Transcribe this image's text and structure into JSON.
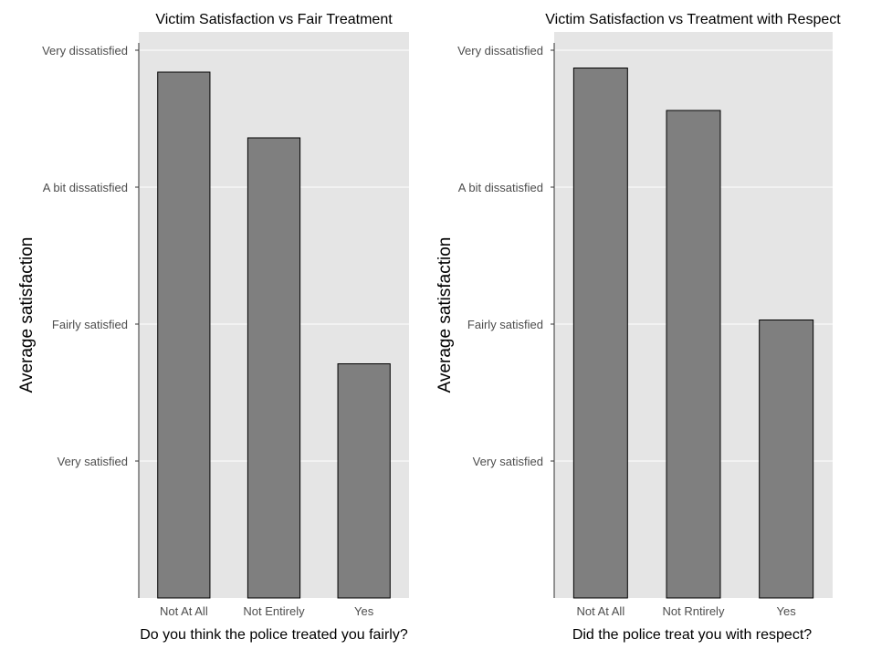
{
  "chart_data": [
    {
      "type": "bar",
      "title": "Victim Satisfaction vs Fair Treatment",
      "xlabel": "Do you think the police treated you fairly?",
      "ylabel": "Average satisfaction",
      "categories": [
        "Not At All",
        "Not Entirely",
        "Yes"
      ],
      "values": [
        3.84,
        3.36,
        1.71
      ],
      "ylim": [
        0,
        4
      ],
      "yticks": [
        {
          "value": 1,
          "label": "Very satisfied"
        },
        {
          "value": 2,
          "label": "Fairly satisfied"
        },
        {
          "value": 3,
          "label": "A bit dissatisfied"
        },
        {
          "value": 4,
          "label": "Very dissatisfied"
        }
      ],
      "grid": true,
      "colors": {
        "bar_fill": "#7f7f7f",
        "bar_stroke": "#000000",
        "panel": "#e5e5e5",
        "grid": "#ffffff"
      }
    },
    {
      "type": "bar",
      "title": "Victim Satisfaction vs Treatment with Respect",
      "xlabel": "Did the police treat you with respect?",
      "ylabel": "Average satisfaction",
      "categories": [
        "Not At All",
        "Not Rntirely",
        "Yes"
      ],
      "values": [
        3.87,
        3.56,
        2.03
      ],
      "ylim": [
        0,
        4
      ],
      "yticks": [
        {
          "value": 1,
          "label": "Very satisfied"
        },
        {
          "value": 2,
          "label": "Fairly satisfied"
        },
        {
          "value": 3,
          "label": "A bit dissatisfied"
        },
        {
          "value": 4,
          "label": "Very dissatisfied"
        }
      ],
      "grid": true,
      "colors": {
        "bar_fill": "#7f7f7f",
        "bar_stroke": "#000000",
        "panel": "#e5e5e5",
        "grid": "#ffffff"
      }
    }
  ]
}
